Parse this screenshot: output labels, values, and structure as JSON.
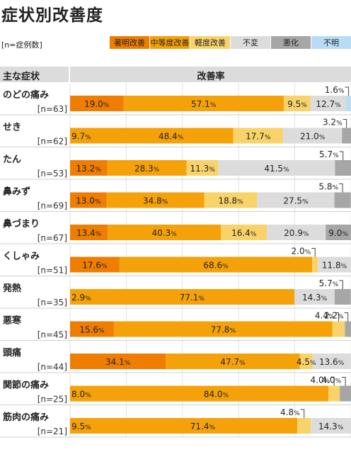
{
  "title": "症状別改善度",
  "n_note": "[n=症例数]",
  "legend": [
    {
      "label": "著明改善",
      "color": "#ef7d00"
    },
    {
      "label": "中等度改善",
      "color": "#f5a20a"
    },
    {
      "label": "軽度改善",
      "color": "#f8d36a"
    },
    {
      "label": "不変",
      "color": "#dcdcdc"
    },
    {
      "label": "悪化",
      "color": "#a6a6a6"
    },
    {
      "label": "不明",
      "color": "#b7dcf5"
    }
  ],
  "header": {
    "symptom": "主な症状",
    "rate": "改善率"
  },
  "chart_data": {
    "type": "bar",
    "orientation": "horizontal",
    "stacked": true,
    "title": "症状別改善度",
    "xlim": [
      0,
      100
    ],
    "unit": "%",
    "categories": [
      {
        "name": "のどの痛み",
        "n": "[n=63]"
      },
      {
        "name": "せき",
        "n": "[n=62]"
      },
      {
        "name": "たん",
        "n": "[n=53]"
      },
      {
        "name": "鼻みず",
        "n": "[n=69]"
      },
      {
        "name": "鼻づまり",
        "n": "[n=67]"
      },
      {
        "name": "くしゃみ",
        "n": "[n=51]"
      },
      {
        "name": "発熱",
        "n": "[n=35]"
      },
      {
        "name": "悪寒",
        "n": "[n=45]"
      },
      {
        "name": "頭痛",
        "n": "[n=44]"
      },
      {
        "name": "関節の痛み",
        "n": "[n=25]"
      },
      {
        "name": "筋肉の痛み",
        "n": "[n=21]"
      }
    ],
    "series": [
      {
        "name": "著明改善",
        "values": [
          19.0,
          0,
          13.2,
          13.0,
          13.4,
          17.6,
          0,
          15.6,
          34.1,
          0,
          0
        ]
      },
      {
        "name": "中等度改善",
        "values": [
          57.1,
          58.1,
          28.3,
          34.8,
          40.3,
          68.6,
          79.9,
          77.8,
          47.7,
          92.0,
          80.9
        ]
      },
      {
        "name": "軽度改善",
        "values": [
          9.5,
          17.7,
          11.3,
          18.8,
          16.4,
          2.0,
          0,
          4.4,
          4.5,
          4.0,
          4.8
        ]
      },
      {
        "name": "不変",
        "values": [
          12.7,
          21.0,
          41.5,
          27.5,
          20.9,
          11.8,
          14.3,
          0,
          13.6,
          0,
          14.3
        ]
      },
      {
        "name": "悪化",
        "values": [
          0,
          3.2,
          5.7,
          5.8,
          9.0,
          0,
          5.7,
          2.2,
          0,
          4.0,
          0
        ]
      },
      {
        "name": "不明",
        "values": [
          1.6,
          0,
          0,
          0,
          0,
          0,
          0,
          0,
          0,
          0,
          0
        ]
      }
    ],
    "data_labels": [
      [
        {
          "text": "19.0",
          "seg": 0
        },
        {
          "text": "57.1",
          "seg": 1
        },
        {
          "text": "9.5",
          "seg": 2
        },
        {
          "text": "12.7",
          "seg": 3
        },
        {
          "text": "1.6",
          "seg": 5,
          "callout": true
        }
      ],
      [
        {
          "text": "9.7",
          "seg": 1,
          "offset": 0
        },
        {
          "text": "48.4",
          "seg": 1,
          "offset": 9.7
        },
        {
          "text": "17.7",
          "seg": 2
        },
        {
          "text": "21.0",
          "seg": 3
        },
        {
          "text": "3.2",
          "seg": 4,
          "callout": true
        }
      ],
      [
        {
          "text": "13.2",
          "seg": 0
        },
        {
          "text": "28.3",
          "seg": 1
        },
        {
          "text": "11.3",
          "seg": 2
        },
        {
          "text": "41.5",
          "seg": 3
        },
        {
          "text": "5.7",
          "seg": 4,
          "callout": true
        }
      ],
      [
        {
          "text": "13.0",
          "seg": 0
        },
        {
          "text": "34.8",
          "seg": 1
        },
        {
          "text": "18.8",
          "seg": 2
        },
        {
          "text": "27.5",
          "seg": 3
        },
        {
          "text": "5.8",
          "seg": 4,
          "callout": true
        }
      ],
      [
        {
          "text": "13.4",
          "seg": 0
        },
        {
          "text": "40.3",
          "seg": 1
        },
        {
          "text": "16.4",
          "seg": 2
        },
        {
          "text": "20.9",
          "seg": 3
        },
        {
          "text": "9.0",
          "seg": 4
        }
      ],
      [
        {
          "text": "17.6",
          "seg": 0
        },
        {
          "text": "68.6",
          "seg": 1
        },
        {
          "text": "2.0",
          "seg": 2,
          "callout": true
        },
        {
          "text": "11.8",
          "seg": 3
        }
      ],
      [
        {
          "text": "2.9",
          "seg": 1,
          "offset": 0
        },
        {
          "text": "77.1",
          "seg": 1,
          "offset": 2.9
        },
        {
          "text": "14.3",
          "seg": 3
        },
        {
          "text": "5.7",
          "seg": 4,
          "callout": true
        }
      ],
      [
        {
          "text": "15.6",
          "seg": 0
        },
        {
          "text": "77.8",
          "seg": 1
        },
        {
          "text": "4.4",
          "seg": 2,
          "callout": true
        },
        {
          "text": "2.2",
          "seg": 4,
          "callout": true
        }
      ],
      [
        {
          "text": "34.1",
          "seg": 0
        },
        {
          "text": "47.7",
          "seg": 1
        },
        {
          "text": "4.5",
          "seg": 2
        },
        {
          "text": "13.6",
          "seg": 3
        }
      ],
      [
        {
          "text": "8.0",
          "seg": 1,
          "offset": 0
        },
        {
          "text": "84.0",
          "seg": 1,
          "offset": 8.0
        },
        {
          "text": "4.0",
          "seg": 2,
          "callout": true
        },
        {
          "text": "4.0",
          "seg": 4,
          "callout": true
        }
      ],
      [
        {
          "text": "9.5",
          "seg": 1,
          "offset": 0
        },
        {
          "text": "71.4",
          "seg": 1,
          "offset": 9.5
        },
        {
          "text": "4.8",
          "seg": 2,
          "callout": true
        },
        {
          "text": "14.3",
          "seg": 3
        }
      ]
    ]
  }
}
